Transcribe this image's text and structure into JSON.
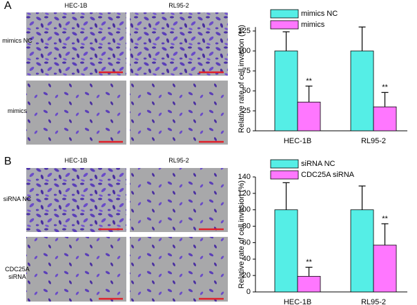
{
  "panels": [
    {
      "label": "A",
      "columns": [
        "HEC-1B",
        "RL95-2"
      ],
      "rows": [
        "mimics NC",
        "mimics"
      ]
    },
    {
      "label": "B",
      "columns": [
        "HEC-1B",
        "RL95-2"
      ],
      "rows": [
        "siRNA NC",
        "CDC25A siRNA"
      ]
    }
  ],
  "chart_data": [
    {
      "type": "bar",
      "y_label": "Relative rate of cell invasion (%)",
      "categories": [
        "HEC-1B",
        "RL95-2"
      ],
      "series": [
        {
          "name": "mimics NC",
          "color": "#55eee6",
          "values": [
            100,
            100
          ],
          "errors": [
            24,
            30
          ]
        },
        {
          "name": "mimics",
          "color": "#ff77ff",
          "values": [
            36,
            30
          ],
          "errors": [
            20,
            18
          ],
          "annotations": [
            "**",
            "**"
          ]
        }
      ],
      "ylim": [
        0,
        130
      ],
      "yticks": [
        0,
        25,
        50,
        75,
        100,
        125
      ],
      "legend": "top"
    },
    {
      "type": "bar",
      "y_label": "Relative rate of cell invasion (%)",
      "categories": [
        "HEC-1B",
        "RL95-2"
      ],
      "series": [
        {
          "name": "siRNA NC",
          "color": "#55eee6",
          "values": [
            100,
            100
          ],
          "errors": [
            33,
            29
          ]
        },
        {
          "name": "CDC25A siRNA",
          "color": "#ff77ff",
          "values": [
            19,
            57
          ],
          "errors": [
            11,
            26
          ],
          "annotations": [
            "**",
            "**"
          ]
        }
      ],
      "ylim": [
        0,
        140
      ],
      "yticks": [
        0,
        20,
        40,
        60,
        80,
        100,
        120,
        140
      ],
      "legend": "top"
    }
  ]
}
